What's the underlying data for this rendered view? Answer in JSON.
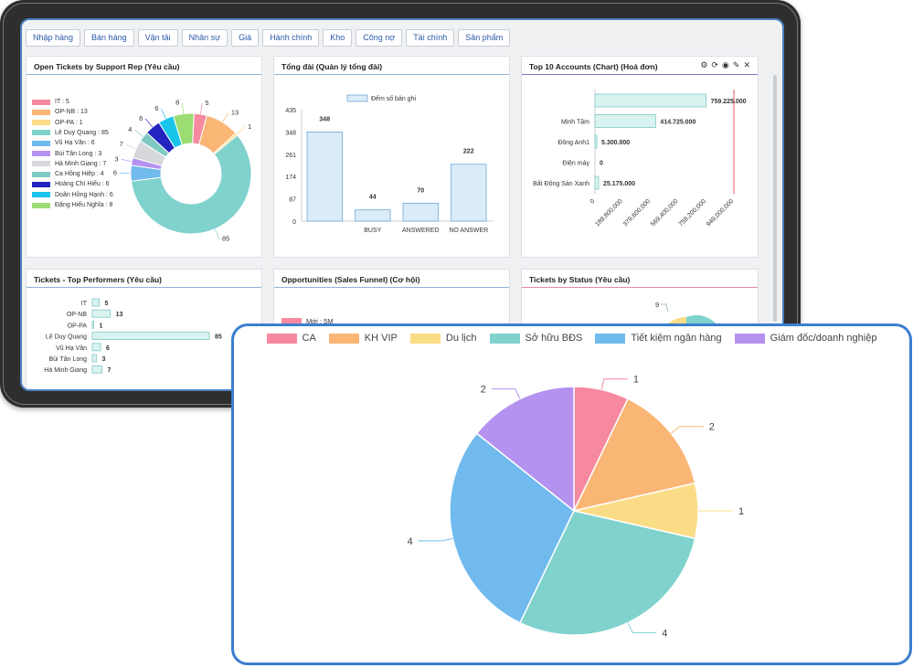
{
  "menu": [
    "Nhập hàng",
    "Bán hàng",
    "Vận tải",
    "Nhân sự",
    "Giá",
    "Hành chính",
    "Kho",
    "Công nợ",
    "Tài chính",
    "Sản phẩm"
  ],
  "panels": {
    "open_tickets": {
      "title": "Open Tickets by Support Rep (Yêu cầu)",
      "legend": [
        "IT : 5",
        "OP-NB : 13",
        "OP-PA : 1",
        "Lê Duy Quang : 85",
        "Vũ Hạ Vân : 6",
        "Bùi Tân Long : 3",
        "Hà Minh Giang : 7",
        "Ca Hồng Hiệp : 4",
        "Hoàng Chí Hiếu : 6",
        "Doãn Hồng Hạnh : 6",
        "Đặng Hiếu Nghĩa : 8"
      ],
      "labels": [
        "5",
        "13",
        "1",
        "85",
        "6",
        "3",
        "7",
        "4",
        "6",
        "6",
        "8"
      ]
    },
    "tong_dai": {
      "title": "Tổng đài (Quản lý tổng đài)",
      "legend": "Đếm số bản ghi",
      "y_ticks": [
        "435",
        "348",
        "261",
        "174",
        "87",
        "0"
      ]
    },
    "top_accounts": {
      "title": "Top 10 Accounts (Chart) (Hoá đơn)",
      "x_ticks": [
        "0",
        "189,800,000",
        "379,600,000",
        "569,400,000",
        "759,200,000",
        "949,000,000"
      ]
    },
    "performers": {
      "title": "Tickets - Top Performers (Yêu cầu)"
    },
    "opportunities": {
      "title": "Opportunities (Sales Funnel) (Cơ hội)",
      "legend": "Mới : 5M"
    },
    "by_status": {
      "title": "Tickets by Status (Yêu cầu)",
      "label": "9"
    }
  },
  "tool_icons": [
    "gear-icon",
    "refresh-icon",
    "eye-icon",
    "pencil-icon",
    "close-icon"
  ],
  "colors": {
    "pink": "#f6899f",
    "orange": "#f9b675",
    "yellow": "#fbdc86",
    "teal": "#80d2cd",
    "blue": "#70baee",
    "purple": "#b592f0",
    "grey": "#d6d8db",
    "navy": "#2323c0",
    "cyan": "#19c4ea",
    "green": "#9bdc73",
    "bar_fill": "#daecf8",
    "bar_stroke": "#6fa9db"
  },
  "chart_data": [
    {
      "type": "pie",
      "title": "Open Tickets by Support Rep (Yêu cầu)",
      "categories": [
        "IT",
        "OP-NB",
        "OP-PA",
        "Lê Duy Quang",
        "Vũ Hạ Vân",
        "Bùi Tân Long",
        "Hà Minh Giang",
        "Ca Hồng Hiệp",
        "Hoàng Chí Hiếu",
        "Doãn Hồng Hạnh",
        "Đặng Hiếu Nghĩa"
      ],
      "values": [
        5,
        13,
        1,
        85,
        6,
        3,
        7,
        4,
        6,
        6,
        8
      ],
      "donut": true
    },
    {
      "type": "bar",
      "title": "Tổng đài (Quản lý tổng đài)",
      "categories": [
        "",
        "BUSY",
        "ANSWERED",
        "NO ANSWER"
      ],
      "series": [
        {
          "name": "Đếm số bản ghi",
          "values": [
            348,
            44,
            70,
            222
          ]
        }
      ],
      "ylim": [
        0,
        435
      ]
    },
    {
      "type": "bar",
      "orientation": "horizontal",
      "title": "Top 10 Accounts (Chart) (Hoá đơn)",
      "categories": [
        "",
        "Minh Tâm",
        "Đông Anh1",
        "Điện máy",
        "Bất Động Sản Xanh"
      ],
      "values": [
        759225000,
        414725000,
        5300000,
        0,
        25175000
      ],
      "value_labels": [
        "759.225.000",
        "414.725.000",
        "5.300.000",
        "0",
        "25.175.000"
      ],
      "xlim": [
        0,
        949000000
      ]
    },
    {
      "type": "bar",
      "orientation": "horizontal",
      "title": "Tickets - Top Performers (Yêu cầu)",
      "categories": [
        "IT",
        "OP-NB",
        "OP-PA",
        "Lê Duy Quang",
        "Vũ Hạ Vân",
        "Bùi Tân Long",
        "Hà Minh Giang"
      ],
      "values": [
        5,
        13,
        1,
        85,
        6,
        3,
        7
      ]
    },
    {
      "type": "pie",
      "categories": [
        "CA",
        "KH VIP",
        "Du lịch",
        "Sở hữu BĐS",
        "Tiết kiệm ngân hàng",
        "Giám đốc/doanh nghiệp"
      ],
      "values": [
        1,
        2,
        1,
        4,
        4,
        2
      ],
      "legend_position": "top"
    }
  ]
}
